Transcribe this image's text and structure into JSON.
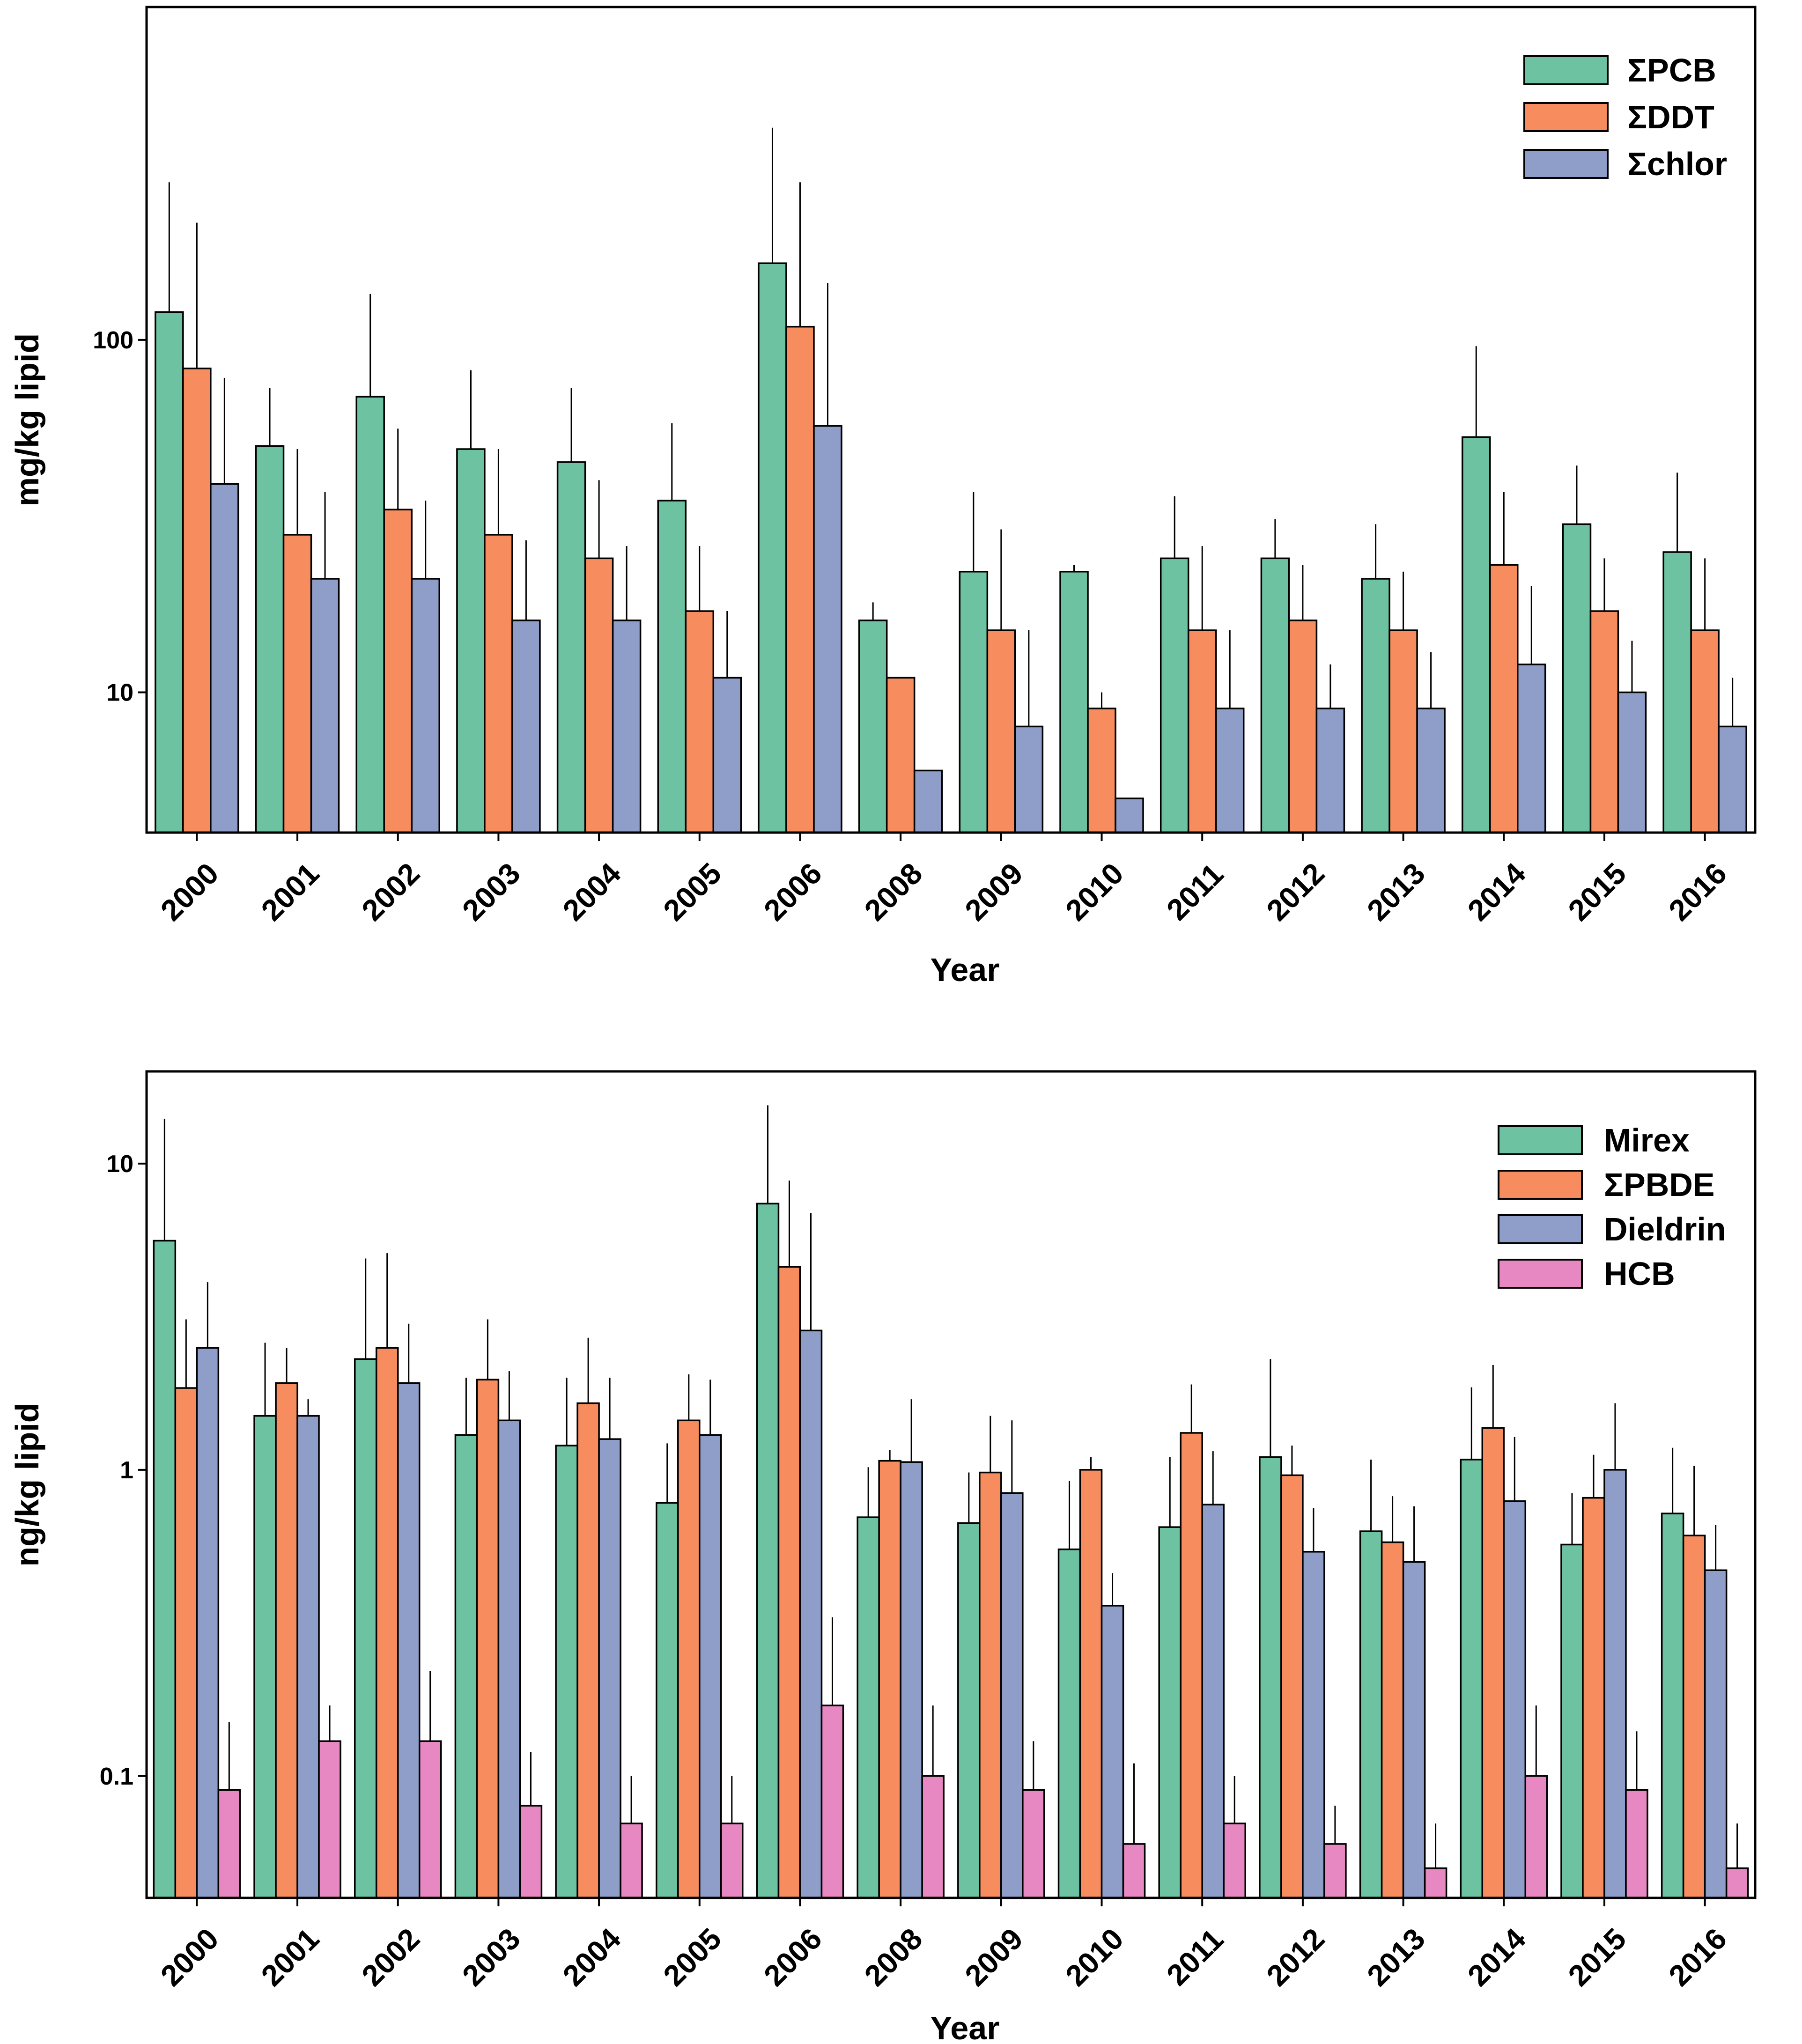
{
  "colors": {
    "green": "#6dc2a1",
    "orange": "#f78d5f",
    "blue": "#8f9dc9",
    "pink": "#e888c2"
  },
  "chart_data": [
    {
      "type": "bar",
      "scale": "log",
      "title": "",
      "xlabel": "Year",
      "ylabel": "mg/kg lipid",
      "ylim": [
        4,
        880
      ],
      "yticks": [
        {
          "value": 10,
          "label": "10"
        },
        {
          "value": 100,
          "label": "100"
        }
      ],
      "legend_position": "top-right",
      "categories": [
        "2000",
        "2001",
        "2002",
        "2003",
        "2004",
        "2005",
        "2006",
        "2008",
        "2009",
        "2010",
        "2011",
        "2012",
        "2013",
        "2014",
        "2015",
        "2016"
      ],
      "series": [
        {
          "name": "ΣPCB",
          "color": "green",
          "values": [
            120,
            50,
            69,
            49,
            45,
            35,
            165,
            16,
            22,
            22,
            24,
            24,
            21,
            53,
            30,
            25
          ],
          "errors": [
            280,
            73,
            135,
            82,
            73,
            58,
            400,
            18,
            37,
            23,
            36,
            31,
            30,
            96,
            44,
            42
          ]
        },
        {
          "name": "ΣDDT",
          "color": "orange",
          "values": [
            83,
            28,
            33,
            28,
            24,
            17,
            109,
            11,
            15,
            9,
            15,
            16,
            15,
            23,
            17,
            15
          ],
          "errors": [
            215,
            49,
            56,
            49,
            40,
            26,
            280,
            11,
            29,
            10,
            26,
            23,
            22,
            37,
            24,
            24
          ]
        },
        {
          "name": "Σchlor",
          "color": "blue",
          "values": [
            39,
            21,
            21,
            16,
            16,
            11,
            57,
            6,
            8,
            5,
            9,
            9,
            9,
            12,
            10,
            8
          ],
          "errors": [
            78,
            37,
            35,
            27,
            26,
            17,
            145,
            6,
            15,
            5,
            15,
            12,
            13,
            20,
            14,
            11
          ]
        }
      ]
    },
    {
      "type": "bar",
      "scale": "log",
      "title": "",
      "xlabel": "Year",
      "ylabel": "ng/kg lipid",
      "ylim": [
        0.04,
        20
      ],
      "yticks": [
        {
          "value": 0.1,
          "label": "0.1"
        },
        {
          "value": 1,
          "label": "1"
        },
        {
          "value": 10,
          "label": "10"
        }
      ],
      "legend_position": "top-right",
      "categories": [
        "2000",
        "2001",
        "2002",
        "2003",
        "2004",
        "2005",
        "2006",
        "2008",
        "2009",
        "2010",
        "2011",
        "2012",
        "2013",
        "2014",
        "2015",
        "2016"
      ],
      "series": [
        {
          "name": "Mirex",
          "color": "green",
          "values": [
            5.6,
            1.5,
            2.3,
            1.3,
            1.2,
            0.78,
            7.4,
            0.7,
            0.67,
            0.55,
            0.65,
            1.1,
            0.63,
            1.08,
            0.57,
            0.72
          ],
          "errors": [
            14,
            2.6,
            4.9,
            2.0,
            2.0,
            1.22,
            15.5,
            1.02,
            0.98,
            0.92,
            1.1,
            2.3,
            1.08,
            1.86,
            0.84,
            1.18
          ]
        },
        {
          "name": "ΣPBDE",
          "color": "orange",
          "values": [
            1.85,
            1.92,
            2.5,
            1.97,
            1.65,
            1.45,
            4.6,
            1.07,
            0.98,
            1.0,
            1.32,
            0.96,
            0.58,
            1.37,
            0.81,
            0.61
          ],
          "errors": [
            3.1,
            2.5,
            5.1,
            3.1,
            2.7,
            2.05,
            8.8,
            1.16,
            1.5,
            1.1,
            1.9,
            1.2,
            0.82,
            2.2,
            1.12,
            1.03
          ]
        },
        {
          "name": "Dieldrin",
          "color": "blue",
          "values": [
            2.5,
            1.5,
            1.92,
            1.45,
            1.26,
            1.3,
            2.85,
            1.06,
            0.84,
            0.36,
            0.77,
            0.54,
            0.5,
            0.79,
            1.0,
            0.47
          ],
          "errors": [
            4.1,
            1.7,
            3.0,
            2.1,
            2.0,
            1.97,
            6.9,
            1.7,
            1.45,
            0.46,
            1.15,
            0.75,
            0.76,
            1.28,
            1.65,
            0.66
          ]
        },
        {
          "name": "HCB",
          "color": "pink",
          "values": [
            0.09,
            0.13,
            0.13,
            0.08,
            0.07,
            0.07,
            0.17,
            0.1,
            0.09,
            0.06,
            0.07,
            0.06,
            0.05,
            0.1,
            0.09,
            0.05
          ],
          "errors": [
            0.15,
            0.17,
            0.22,
            0.12,
            0.1,
            0.1,
            0.33,
            0.17,
            0.13,
            0.11,
            0.1,
            0.08,
            0.07,
            0.17,
            0.14,
            0.07
          ]
        }
      ]
    }
  ]
}
